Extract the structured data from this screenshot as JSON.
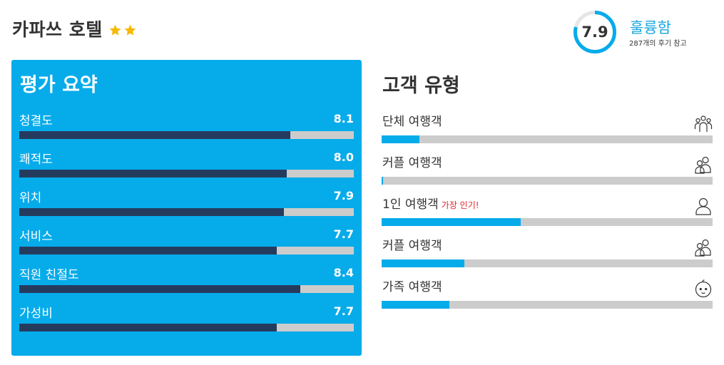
{
  "hotel": {
    "name": "카파쓰 호텔",
    "star_count": 2,
    "star_color": "#f6b800"
  },
  "score": {
    "value": "7.9",
    "fraction": 0.79,
    "rating_word": "훌륭함",
    "review_note": "287개의 후기 참고",
    "ring_color": "#06abea"
  },
  "summary": {
    "title": "평가 요약",
    "panel_color": "#06abea",
    "bar_color": "#253b5e",
    "scale_max": 10,
    "metrics": [
      {
        "label": "청결도",
        "value": "8.1",
        "score": 8.1
      },
      {
        "label": "쾌적도",
        "value": "8.0",
        "score": 8.0
      },
      {
        "label": "위치",
        "value": "7.9",
        "score": 7.9
      },
      {
        "label": "서비스",
        "value": "7.7",
        "score": 7.7
      },
      {
        "label": "직원 친절도",
        "value": "8.4",
        "score": 8.4
      },
      {
        "label": "가성비",
        "value": "7.7",
        "score": 7.7
      }
    ]
  },
  "guests": {
    "title": "고객 유형",
    "bar_color": "#06abea",
    "types": [
      {
        "label": "단체 여행객",
        "badge": "",
        "icon": "group-icon",
        "share": 0.115
      },
      {
        "label": "커플 여행객",
        "badge": "",
        "icon": "couple-icon",
        "share": 0.005
      },
      {
        "label": "1인 여행객",
        "badge": "가장 인기!",
        "icon": "person-icon",
        "share": 0.42
      },
      {
        "label": "커플 여행객",
        "badge": "",
        "icon": "couple-icon",
        "share": 0.25
      },
      {
        "label": "가족 여행객",
        "badge": "",
        "icon": "baby-icon",
        "share": 0.205
      }
    ]
  }
}
